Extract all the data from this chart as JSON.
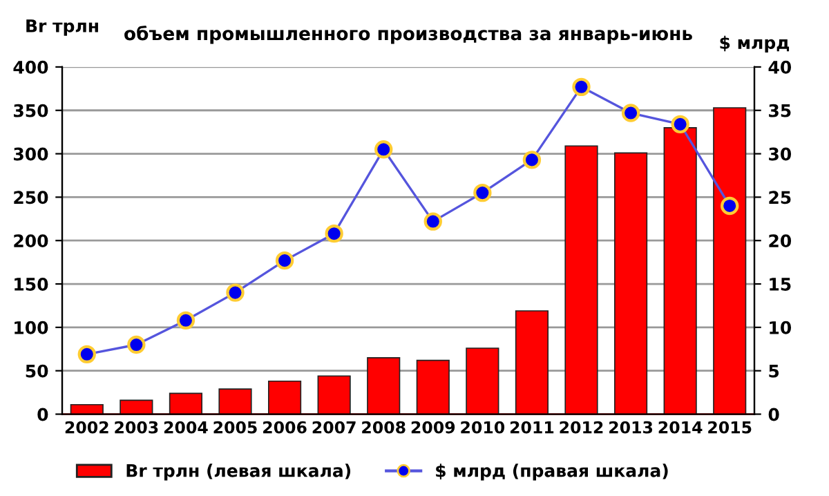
{
  "chart_data": {
    "type": "bar",
    "title": "объем промышленного производства за январь-июнь",
    "ylabel": "Br трлн",
    "y2label": "$ млрд",
    "categories": [
      "2002",
      "2003",
      "2004",
      "2005",
      "2006",
      "2007",
      "2008",
      "2009",
      "2010",
      "2011",
      "2012",
      "2013",
      "2014",
      "2015"
    ],
    "series": [
      {
        "name": "Br трлн (левая шкала)",
        "color": "#ff0000",
        "values": [
          11,
          16,
          24,
          29,
          38,
          44,
          65,
          62,
          76,
          119,
          309,
          301,
          330,
          353
        ]
      },
      {
        "name": "$ млрд (правая шкала)",
        "type": "line",
        "axis": "y2",
        "color": "#5555dd",
        "marker": "circle",
        "values": [
          6.9,
          8.0,
          10.8,
          14.0,
          17.7,
          20.8,
          30.5,
          22.2,
          25.5,
          29.3,
          37.7,
          34.7,
          33.4,
          24.0
        ]
      }
    ],
    "ylim": [
      0,
      400
    ],
    "yticks": [
      0,
      50,
      100,
      150,
      200,
      250,
      300,
      350,
      400
    ],
    "y2lim": [
      0,
      40
    ],
    "y2ticks": [
      0,
      5,
      10,
      15,
      20,
      25,
      30,
      35,
      40
    ],
    "grid": "y",
    "legend": "bottom"
  }
}
